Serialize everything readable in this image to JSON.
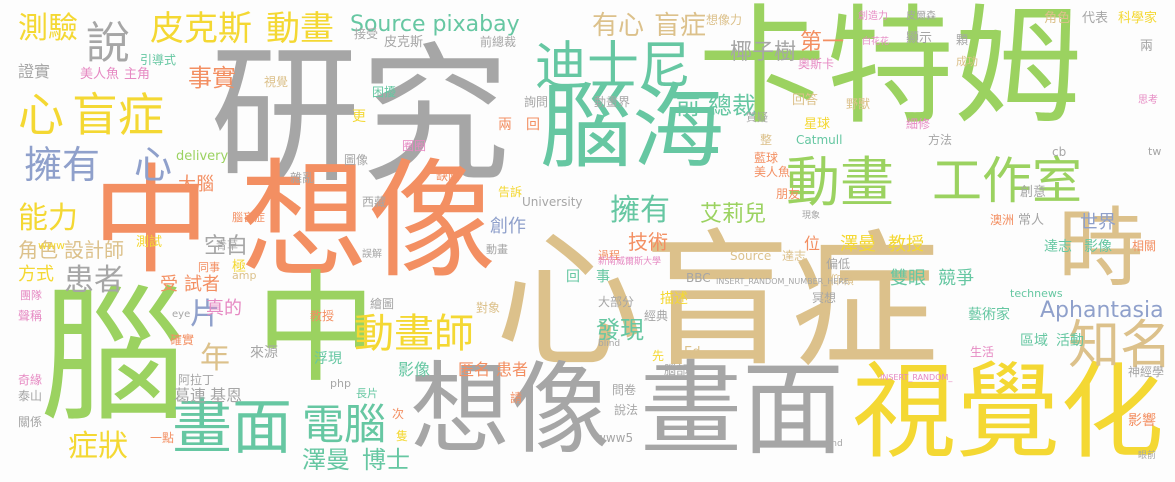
{
  "palette": {
    "gray": "#a6a6a6",
    "tan": "#dcc18b",
    "green": "#9bd260",
    "orange": "#f38f62",
    "teal": "#66c7a2",
    "blue": "#8fa0cb",
    "pink": "#e68ac3",
    "yellow": "#f4d833"
  },
  "words": [
    {
      "text": "心盲症",
      "color": "tan"
    },
    {
      "text": "研究",
      "color": "gray"
    },
    {
      "text": "卡特姆",
      "color": "green"
    },
    {
      "text": "想像",
      "color": "orange"
    },
    {
      "text": "中",
      "color": "orange"
    },
    {
      "text": "腦",
      "color": "green"
    },
    {
      "text": "中",
      "color": "green"
    },
    {
      "text": "腦海",
      "color": "teal"
    },
    {
      "text": "畫面",
      "color": "gray"
    },
    {
      "text": "想像",
      "color": "gray"
    },
    {
      "text": "視覺化",
      "color": "yellow"
    },
    {
      "text": "時",
      "color": "tan"
    },
    {
      "text": "迪士尼",
      "color": "teal"
    },
    {
      "text": "動畫",
      "color": "green"
    },
    {
      "text": "工作室",
      "color": "green"
    },
    {
      "text": "畫面",
      "color": "teal"
    },
    {
      "text": "動畫師",
      "color": "yellow"
    },
    {
      "text": "知名",
      "color": "tan"
    },
    {
      "text": "電腦",
      "color": "teal"
    },
    {
      "text": "心",
      "color": "yellow"
    },
    {
      "text": "盲症",
      "color": "yellow"
    },
    {
      "text": "說",
      "color": "gray"
    },
    {
      "text": "擁有",
      "color": "blue"
    },
    {
      "text": "心",
      "color": "blue"
    },
    {
      "text": "測驗",
      "color": "yellow"
    },
    {
      "text": "皮克斯",
      "color": "yellow"
    },
    {
      "text": "動畫",
      "color": "yellow"
    },
    {
      "text": "Source pixabay",
      "color": "teal"
    },
    {
      "text": "有心",
      "color": "tan"
    },
    {
      "text": "盲症",
      "color": "tan"
    },
    {
      "text": "能力",
      "color": "yellow"
    },
    {
      "text": "患者",
      "color": "gray"
    },
    {
      "text": "症狀",
      "color": "yellow"
    },
    {
      "text": "擁有",
      "color": "teal"
    },
    {
      "text": "Aphantasia",
      "color": "blue"
    },
    {
      "text": "片",
      "color": "blue"
    },
    {
      "text": "年",
      "color": "tan"
    },
    {
      "text": "事實",
      "color": "orange"
    },
    {
      "text": "澤曼",
      "color": "teal"
    },
    {
      "text": "博士",
      "color": "teal"
    },
    {
      "text": "發現",
      "color": "teal"
    },
    {
      "text": "第一",
      "color": "orange"
    },
    {
      "text": "前",
      "color": "teal"
    },
    {
      "text": "總裁",
      "color": "teal"
    },
    {
      "text": "椰子樹",
      "color": "gray"
    },
    {
      "text": "艾莉兒",
      "color": "green"
    },
    {
      "text": "技術",
      "color": "orange"
    },
    {
      "text": "澤曼",
      "color": "yellow"
    },
    {
      "text": "教授",
      "color": "yellow"
    },
    {
      "text": "雙眼",
      "color": "teal"
    },
    {
      "text": "競爭",
      "color": "teal"
    },
    {
      "text": "空白",
      "color": "gray"
    },
    {
      "text": "大腦",
      "color": "orange"
    },
    {
      "text": "角色",
      "color": "tan"
    },
    {
      "text": "設計師",
      "color": "tan"
    },
    {
      "text": "世界",
      "color": "blue"
    },
    {
      "text": "區域",
      "color": "teal"
    },
    {
      "text": "活動",
      "color": "teal"
    },
    {
      "text": "影像",
      "color": "teal"
    },
    {
      "text": "葛連",
      "color": "gray"
    },
    {
      "text": "基恩",
      "color": "gray"
    },
    {
      "text": "方式",
      "color": "yellow"
    },
    {
      "text": "受",
      "color": "orange"
    },
    {
      "text": "試者",
      "color": "orange"
    },
    {
      "text": "真的",
      "color": "pink"
    },
    {
      "text": "創作",
      "color": "blue"
    },
    {
      "text": "匿名",
      "color": "orange"
    },
    {
      "text": "患者",
      "color": "orange"
    },
    {
      "text": "描述",
      "color": "yellow"
    },
    {
      "text": "影響",
      "color": "orange"
    },
    {
      "text": "證實",
      "color": "gray"
    },
    {
      "text": "美人魚",
      "color": "pink"
    },
    {
      "text": "主角",
      "color": "pink"
    },
    {
      "text": "皮克斯",
      "color": "gray"
    },
    {
      "text": "想像力",
      "color": "tan"
    },
    {
      "text": "接受",
      "color": "gray"
    },
    {
      "text": "前總裁",
      "color": "gray"
    },
    {
      "text": "回答",
      "color": "tan"
    },
    {
      "text": "詢問",
      "color": "gray"
    },
    {
      "text": "動畫界",
      "color": "gray"
    },
    {
      "text": "奧斯卡",
      "color": "pink"
    },
    {
      "text": "野獸",
      "color": "tan"
    },
    {
      "text": "顯示",
      "color": "gray"
    },
    {
      "text": "角色",
      "color": "tan"
    },
    {
      "text": "代表",
      "color": "gray"
    },
    {
      "text": "科學家",
      "color": "yellow"
    },
    {
      "text": "引導式",
      "color": "teal"
    },
    {
      "text": "困擾",
      "color": "teal"
    },
    {
      "text": "視覺",
      "color": "tan"
    },
    {
      "text": "Catmull",
      "color": "teal"
    },
    {
      "text": "方法",
      "color": "gray"
    },
    {
      "text": "創意",
      "color": "gray"
    },
    {
      "text": "常人",
      "color": "gray"
    },
    {
      "text": "達志",
      "color": "teal"
    },
    {
      "text": "影像",
      "color": "teal"
    },
    {
      "text": "澳洲",
      "color": "orange"
    },
    {
      "text": "藍球",
      "color": "orange"
    },
    {
      "text": "美人魚",
      "color": "orange"
    },
    {
      "text": "朋友",
      "color": "orange"
    },
    {
      "text": "Source",
      "color": "tan"
    },
    {
      "text": "達志",
      "color": "tan"
    },
    {
      "text": "偏低",
      "color": "gray"
    },
    {
      "text": "仰賴",
      "color": "tan"
    },
    {
      "text": "冥想",
      "color": "gray"
    },
    {
      "text": "藝術家",
      "color": "teal"
    },
    {
      "text": "生活",
      "color": "pink"
    },
    {
      "text": "神經學",
      "color": "gray"
    },
    {
      "text": "technews",
      "color": "teal"
    },
    {
      "text": "BBC",
      "color": "gray"
    },
    {
      "text": "經典",
      "color": "gray"
    },
    {
      "text": "大部分",
      "color": "gray"
    },
    {
      "text": "對象",
      "color": "tan"
    },
    {
      "text": "繪圖",
      "color": "gray"
    },
    {
      "text": "教授",
      "color": "orange"
    },
    {
      "text": "確實",
      "color": "orange"
    },
    {
      "text": "來源",
      "color": "gray"
    },
    {
      "text": "浮現",
      "color": "teal"
    },
    {
      "text": "阿拉丁",
      "color": "gray"
    },
    {
      "text": "泰山",
      "color": "gray"
    },
    {
      "text": "奇緣",
      "color": "pink"
    },
    {
      "text": "聲稱",
      "color": "pink"
    },
    {
      "text": "團隊",
      "color": "pink"
    },
    {
      "text": "關係",
      "color": "gray"
    },
    {
      "text": "一點",
      "color": "orange"
    },
    {
      "text": "www5",
      "color": "gray"
    },
    {
      "text": "問卷",
      "color": "gray"
    },
    {
      "text": "說法",
      "color": "gray"
    },
    {
      "text": "先",
      "color": "yellow"
    },
    {
      "text": "Ed",
      "color": "tan"
    },
    {
      "text": "腦部",
      "color": "gray"
    },
    {
      "text": "University",
      "color": "gray"
    },
    {
      "text": "西藏",
      "color": "gray"
    },
    {
      "text": "告訴",
      "color": "yellow"
    },
    {
      "text": "缺陷",
      "color": "orange"
    },
    {
      "text": "過程",
      "color": "orange"
    },
    {
      "text": "動畫",
      "color": "gray"
    },
    {
      "text": "雜亂",
      "color": "gray"
    },
    {
      "text": "圖像",
      "color": "gray"
    },
    {
      "text": "delivery",
      "color": "green"
    },
    {
      "text": "整",
      "color": "tan"
    },
    {
      "text": "星球",
      "color": "yellow"
    },
    {
      "text": "細修",
      "color": "pink"
    },
    {
      "text": "成功",
      "color": "tan"
    },
    {
      "text": "更",
      "color": "yellow"
    },
    {
      "text": "兩",
      "color": "orange"
    },
    {
      "text": "回",
      "color": "orange"
    },
    {
      "text": "圈圈",
      "color": "pink"
    },
    {
      "text": "位",
      "color": "orange"
    },
    {
      "text": "極",
      "color": "yellow"
    },
    {
      "text": "同事",
      "color": "orange"
    },
    {
      "text": "青草",
      "color": "gray"
    },
    {
      "text": "測試",
      "color": "yellow"
    },
    {
      "text": "www",
      "color": "yellow"
    },
    {
      "text": "相關",
      "color": "orange"
    },
    {
      "text": "回",
      "color": "teal"
    },
    {
      "text": "事",
      "color": "teal"
    },
    {
      "text": "次",
      "color": "orange"
    },
    {
      "text": "請",
      "color": "orange"
    },
    {
      "text": "長片",
      "color": "teal"
    },
    {
      "text": "隻",
      "color": "yellow"
    },
    {
      "text": "amp",
      "color": "tan"
    },
    {
      "text": "php",
      "color": "gray"
    },
    {
      "text": "eye",
      "color": "gray"
    },
    {
      "text": "tw",
      "color": "gray"
    },
    {
      "text": "cb",
      "color": "gray"
    },
    {
      "text": "兩",
      "color": "gray"
    },
    {
      "text": "INSERT_RANDOM_NUMBER_HERE",
      "color": "gray"
    },
    {
      "text": "新南威爾斯大學",
      "color": "pink"
    },
    {
      "text": "INSERT_RANDOM_",
      "color": "pink"
    },
    {
      "text": "blind",
      "color": "gray"
    },
    {
      "text": "mind",
      "color": "gray"
    },
    {
      "text": "思考",
      "color": "pink"
    },
    {
      "text": "眼前",
      "color": "gray"
    },
    {
      "text": "現象",
      "color": "gray"
    },
    {
      "text": "白花花",
      "color": "pink"
    },
    {
      "text": "皮爾森",
      "color": "gray"
    },
    {
      "text": "創造力",
      "color": "pink"
    },
    {
      "text": "腦盲症",
      "color": "orange"
    },
    {
      "text": "誤解",
      "color": "gray"
    },
    {
      "text": "質疑",
      "color": "gray"
    },
    {
      "text": "顆",
      "color": "gray"
    }
  ]
}
